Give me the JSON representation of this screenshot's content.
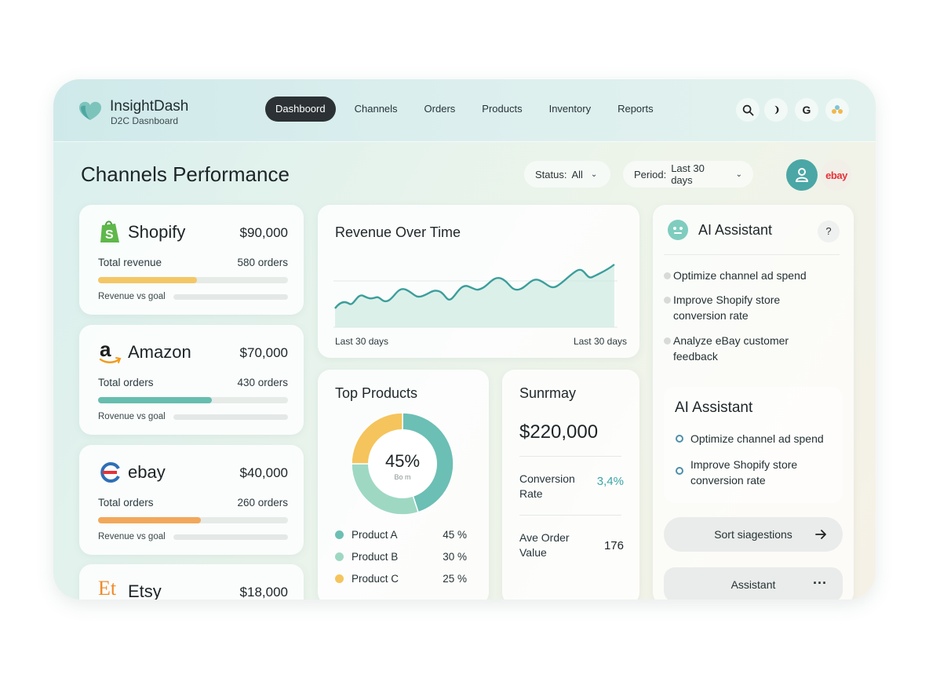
{
  "app": {
    "name": "InsightDash",
    "subtitle": "D2C Dasnboard"
  },
  "nav": {
    "items": [
      "Dashboord",
      "Channels",
      "Orders",
      "Products",
      "Inventory",
      "Reports"
    ],
    "active": 0
  },
  "toolbar": {
    "icons": [
      "search-icon",
      "moon-icon",
      "google-icon",
      "apps-icon"
    ],
    "google_letter": "G"
  },
  "page": {
    "title": "Channels Performance"
  },
  "filters": {
    "status": {
      "label": "Status:",
      "value": "All"
    },
    "period": {
      "label": "Period:",
      "value": "Last 30 days"
    }
  },
  "header_badge": {
    "ebay_text": "ebay"
  },
  "channels": [
    {
      "name": "Shopify",
      "amount": "$90,000",
      "metric": "Total revenue",
      "count": "580  orders",
      "progress": 0.52,
      "bar_color": "#f4c766",
      "goal_label": "Revenue vs goal"
    },
    {
      "name": "Amazon",
      "amount": "$70,000",
      "metric": "Total orders",
      "count": "430  orders",
      "progress": 0.6,
      "bar_color": "#67bdaf",
      "goal_label": "Rovenue vs goal"
    },
    {
      "name": "ebay",
      "amount": "$40,000",
      "metric": "Total orders",
      "count": "260  orders",
      "progress": 0.54,
      "bar_color": "#f2a85a",
      "goal_label": "Revenue vs goal"
    },
    {
      "name": "Etsy",
      "amount": "$18,000",
      "logo_text": "Et"
    }
  ],
  "revenue": {
    "title": "Revenue Over Time",
    "x_start": "Last 30 days",
    "x_end": "Last 30 days"
  },
  "top_products": {
    "title": "Top Products",
    "center_value": "45%",
    "center_sub": "Bo m",
    "items": [
      {
        "name": "Product A",
        "pct": "45 %",
        "color": "#6cbfb4"
      },
      {
        "name": "Product B",
        "pct": "30 %",
        "color": "#9ed8c3"
      },
      {
        "name": "Product C",
        "pct": "25 %",
        "color": "#f5c45c"
      }
    ]
  },
  "summary": {
    "title": "Sunrmay",
    "total": "$220,000",
    "conversion_label": "Conversion Rate",
    "conversion_value": "3,4%",
    "aov_label": "Ave Order Value",
    "aov_value": "176"
  },
  "ai": {
    "title": "AI Assistant",
    "help": "?",
    "suggestions": [
      "Optimize channel ad spend",
      "Improve Shopify store conversion rate",
      "Analyze eBay customer feedback"
    ],
    "panel2_title": "AI Assistant",
    "panel2_items": [
      "Optimize channel ad spend",
      "Improve Shopify store conversion rate"
    ],
    "sort_button": "Sort siagestions",
    "assistant_button": "Assistant",
    "more": "···"
  },
  "colors": {
    "accent": "#4aa7a6",
    "line": "#3b9e9b",
    "nav_active": "#2b3134"
  }
}
